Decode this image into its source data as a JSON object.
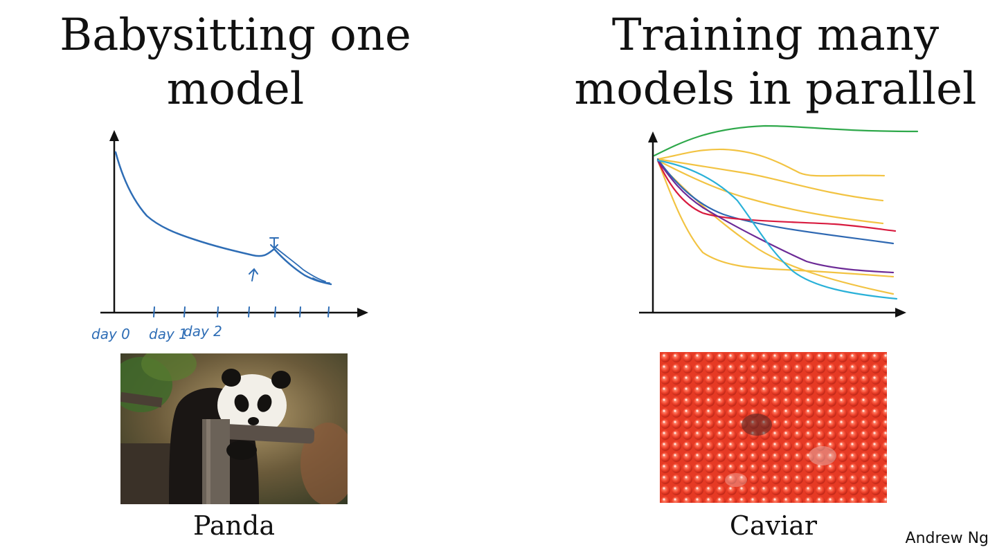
{
  "left": {
    "title_line1": "Babysitting one",
    "title_line2": "model",
    "axis_labels": [
      "day 0",
      "day 1",
      "day 2"
    ],
    "caption": "Panda"
  },
  "right": {
    "title_line1": "Training many",
    "title_line2": "models in parallel",
    "caption": "Caviar",
    "curve_colors": [
      "#2ea84a",
      "#f2c342",
      "#2e68b2",
      "#d81b3f",
      "#6c2a96",
      "#2ab1d8"
    ]
  },
  "author": "Andrew Ng",
  "colors": {
    "ink_blue": "#2e6db5",
    "axis": "#111111"
  }
}
